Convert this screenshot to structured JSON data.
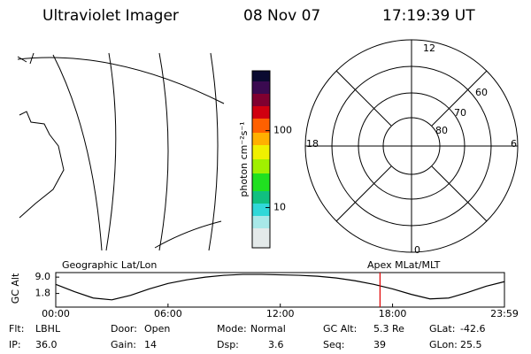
{
  "header": {
    "title": "Ultraviolet Imager",
    "date": "08 Nov 07",
    "time": "17:19:39 UT"
  },
  "map_label": "Geographic Lat/Lon",
  "polar": {
    "label": "Apex MLat/MLT",
    "mlt_labels": [
      "12",
      "18",
      "6",
      "0"
    ],
    "lat_labels": [
      "60",
      "70",
      "80"
    ]
  },
  "colorbar": {
    "label": "photon cm⁻²s⁻¹",
    "scale": "log",
    "range": [
      3,
      600
    ],
    "ticks": [
      10,
      100
    ]
  },
  "altitude": {
    "type": "line",
    "ylabel": "GC Alt",
    "color": "#000000",
    "marker_color": "#e00000",
    "x": [
      0,
      1,
      2,
      3,
      4,
      5,
      6,
      7,
      8,
      9,
      10,
      11,
      12,
      13,
      14,
      15,
      16,
      17,
      18,
      19,
      20,
      21,
      22,
      23,
      23.98
    ],
    "values": [
      5.8,
      2.6,
      -0.2,
      -1.0,
      1.0,
      3.8,
      6.2,
      7.8,
      9.0,
      9.8,
      10.2,
      10.2,
      10.0,
      9.8,
      9.4,
      8.6,
      7.4,
      5.8,
      3.8,
      1.4,
      -0.6,
      -0.2,
      2.2,
      5.0,
      7.0
    ],
    "marker": 17.33,
    "xlim": [
      0,
      23.98
    ],
    "ylim": [
      -4.2,
      11
    ],
    "xticks": [
      {
        "value": 0,
        "label": "00:00"
      },
      {
        "value": 6,
        "label": "06:00"
      },
      {
        "value": 12,
        "label": "12:00"
      },
      {
        "value": 18,
        "label": "18:00"
      },
      {
        "value": 23.98,
        "label": "23:59"
      }
    ],
    "yticks": [
      {
        "value": 9,
        "label": "9.0"
      },
      1.8
    ]
  },
  "status": [
    [
      {
        "label": "Flt:",
        "value": "LBHL"
      },
      {
        "label": "Door:",
        "value": "Open"
      },
      {
        "label": "Mode:",
        "value": "Normal"
      },
      {
        "label": "GC Alt:",
        "value": "5.3 Re"
      },
      {
        "label": "GLat:",
        "value": "-42.6"
      }
    ],
    [
      {
        "label": "IP:",
        "value": "36.0"
      },
      {
        "label": "Gain:",
        "value": "14"
      },
      {
        "label": "Dsp:",
        "value": "3.6"
      },
      {
        "label": "Seq:",
        "value": "39"
      },
      {
        "label": "GLon:",
        "value": "25.5"
      }
    ]
  ]
}
